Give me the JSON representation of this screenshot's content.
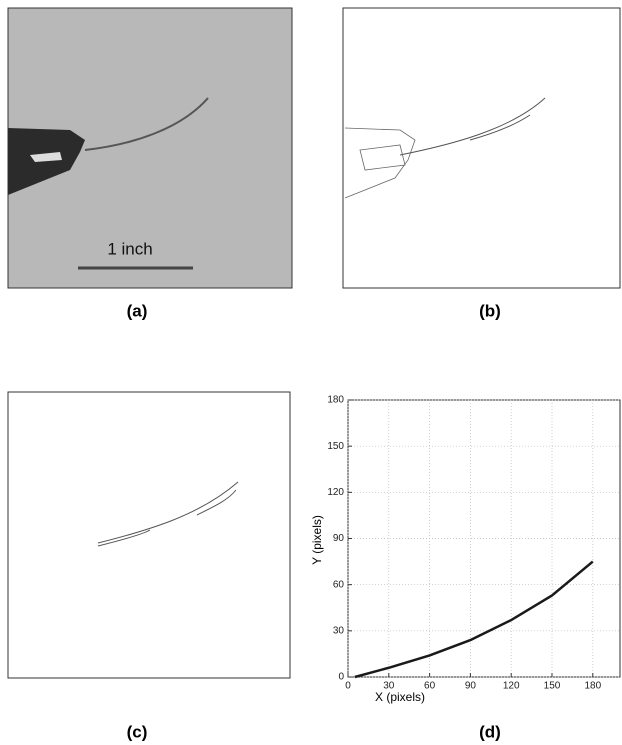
{
  "panels": {
    "a": {
      "label": "(a)",
      "scale_label": "1 inch"
    },
    "b": {
      "label": "(b)"
    },
    "c": {
      "label": "(c)"
    },
    "d": {
      "label": "(d)"
    }
  },
  "chart_data": {
    "type": "line",
    "xlabel": "X (pixels)",
    "ylabel": "Y (pixels)",
    "x": [
      5,
      30,
      60,
      90,
      120,
      150,
      180
    ],
    "values": [
      0,
      6,
      14,
      24,
      37,
      53,
      75
    ],
    "color": "#1a1a1a",
    "xlim": [
      0,
      200
    ],
    "ylim": [
      0,
      180
    ],
    "xticks": [
      0,
      30,
      60,
      90,
      120,
      150,
      180
    ],
    "yticks": [
      0,
      30,
      60,
      90,
      120,
      150,
      180
    ],
    "grid": true
  }
}
